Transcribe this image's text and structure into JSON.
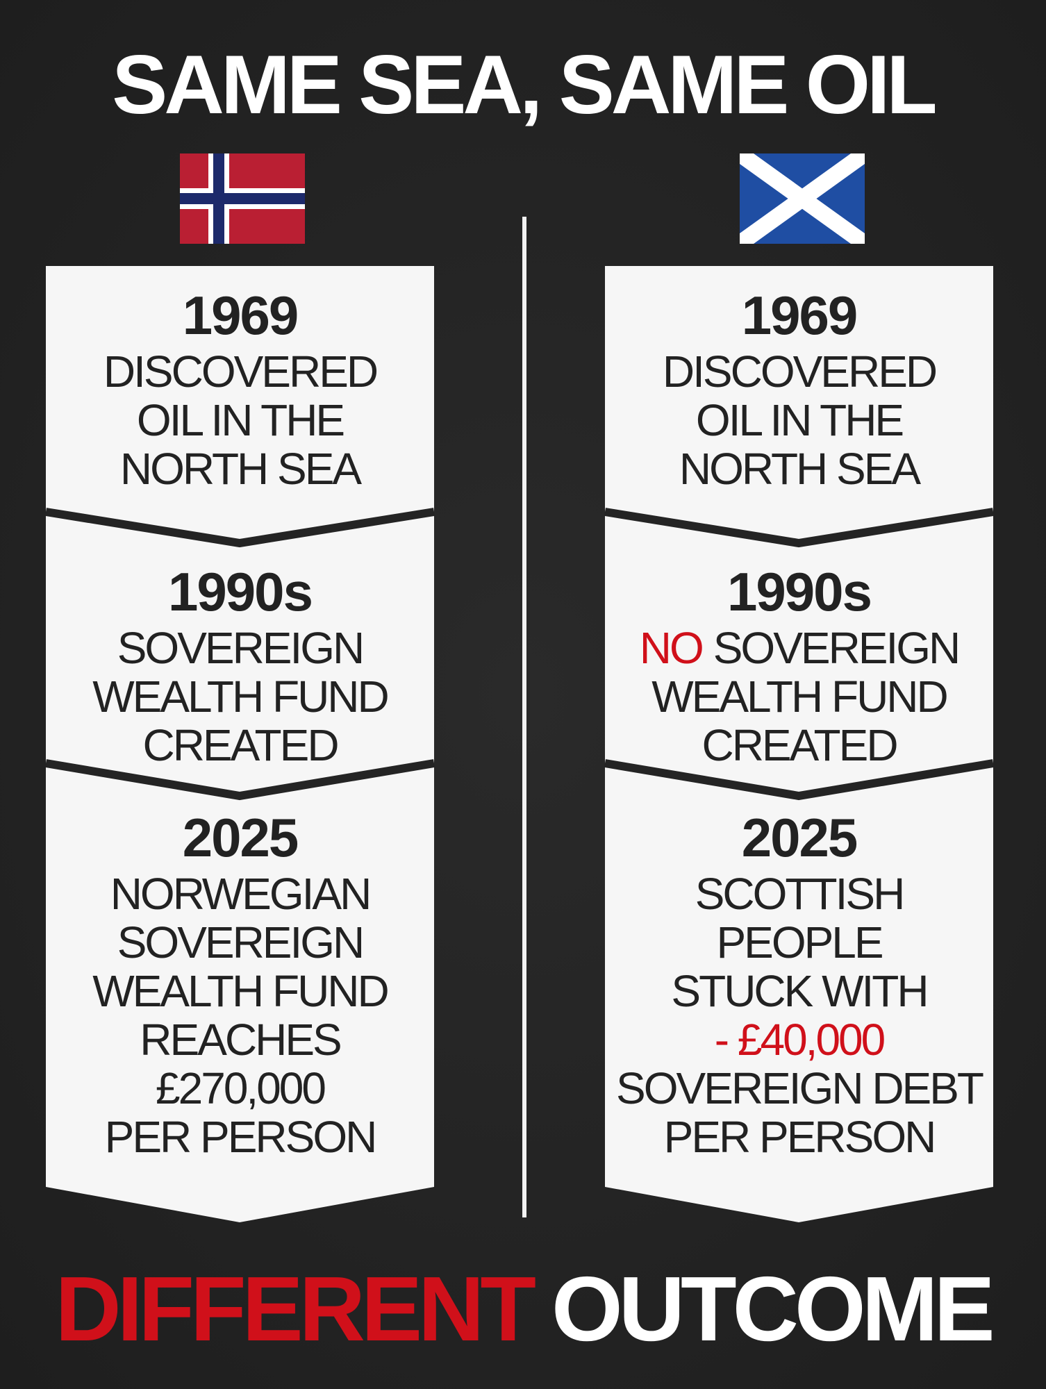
{
  "title": "SAME SEA, SAME OIL",
  "columns": [
    {
      "steps": [
        {
          "year": "1969",
          "lines": [
            "DISCOVERED",
            "OIL IN THE",
            "NORTH SEA"
          ]
        },
        {
          "year": "1990s",
          "lines": [
            "SOVEREIGN",
            "WEALTH FUND",
            "CREATED"
          ]
        },
        {
          "year": "2025",
          "lines": [
            "NORWEGIAN",
            "SOVEREIGN",
            "WEALTH FUND",
            "REACHES",
            "£270,000",
            "PER PERSON"
          ]
        }
      ]
    },
    {
      "steps": [
        {
          "year": "1969",
          "lines": [
            "DISCOVERED",
            "OIL IN THE",
            "NORTH SEA"
          ]
        },
        {
          "year": "1990s",
          "lines": [
            {
              "red": "NO",
              "text": "SOVEREIGN"
            },
            "WEALTH FUND",
            "CREATED"
          ]
        },
        {
          "year": "2025",
          "lines": [
            "SCOTTISH",
            "PEOPLE",
            "STUCK WITH",
            {
              "red": "- £40,000"
            },
            "SOVEREIGN DEBT",
            "PER PERSON"
          ]
        }
      ]
    }
  ],
  "footer": {
    "red": "DIFFERENT",
    "text": "OUTCOME"
  }
}
